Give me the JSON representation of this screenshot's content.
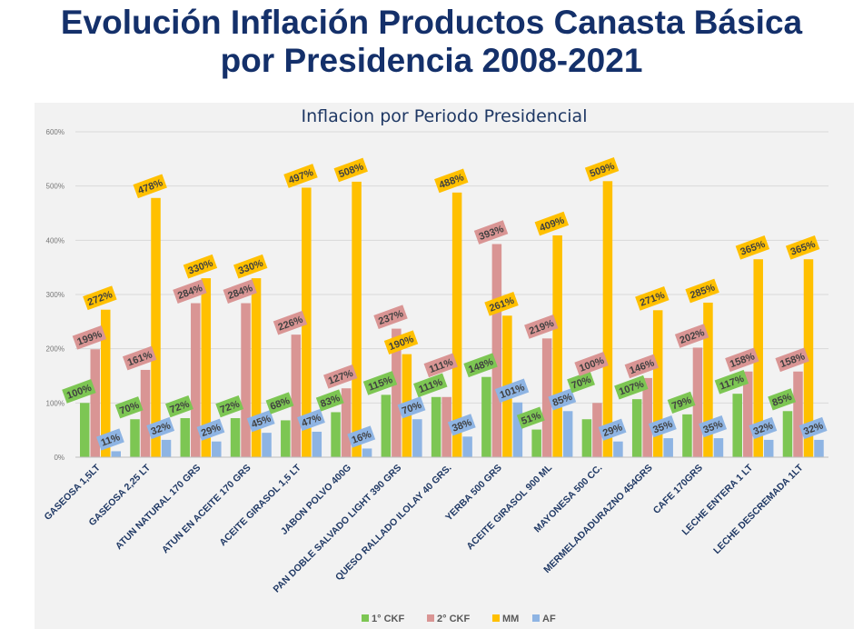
{
  "page": {
    "title_line1": "Evolución Inflación Productos Canasta Básica",
    "title_line2": "por Presidencia 2008-2021"
  },
  "chart_data": {
    "type": "bar",
    "title": "Inflacion por Periodo Presidencial",
    "xlabel": "",
    "ylabel": "",
    "ylim": [
      0,
      600
    ],
    "yticks": [
      "0%",
      "100%",
      "200%",
      "300%",
      "400%",
      "500%",
      "600%"
    ],
    "grid": true,
    "legend_position": "bottom",
    "categories": [
      "GASEOSA 1,5LT",
      "GASEOSA 2,25 LT",
      "ATUN NATURAL 170 GRS",
      "ATUN EN ACEITE 170 GRS",
      "ACEITE GIRASOL 1,5 LT",
      "JABON POLVO 400G",
      "PAN DOBLE SALVADO LIGHT 390 GRS",
      "QUESO RALLADO ILOLAY 40 GRS.",
      "YERBA 500 GRS",
      "ACEITE GIRASOL 900 ML",
      "MAYONESA 500 CC.",
      "MERMELADADURAZNO 454GRS",
      "CAFE 170GRS",
      "LECHE ENTERA 1 LT",
      "LECHE DESCREMADA 1LT"
    ],
    "series": [
      {
        "name": "1° CKF",
        "color": "#7dc653",
        "values": [
          100,
          70,
          72,
          72,
          68,
          83,
          115,
          111,
          148,
          51,
          70,
          107,
          79,
          117,
          85
        ]
      },
      {
        "name": "2° CKF",
        "color": "#d99594",
        "values": [
          199,
          161,
          284,
          284,
          226,
          127,
          237,
          111,
          393,
          219,
          100,
          146,
          202,
          158,
          158
        ]
      },
      {
        "name": "MM",
        "color": "#ffc000",
        "values": [
          272,
          478,
          330,
          330,
          497,
          508,
          190,
          488,
          261,
          409,
          509,
          271,
          285,
          365,
          365
        ]
      },
      {
        "name": "AF",
        "color": "#8eb4e3",
        "values": [
          11,
          32,
          29,
          45,
          47,
          16,
          70,
          38,
          101,
          85,
          29,
          35,
          35,
          32,
          32
        ]
      }
    ]
  }
}
